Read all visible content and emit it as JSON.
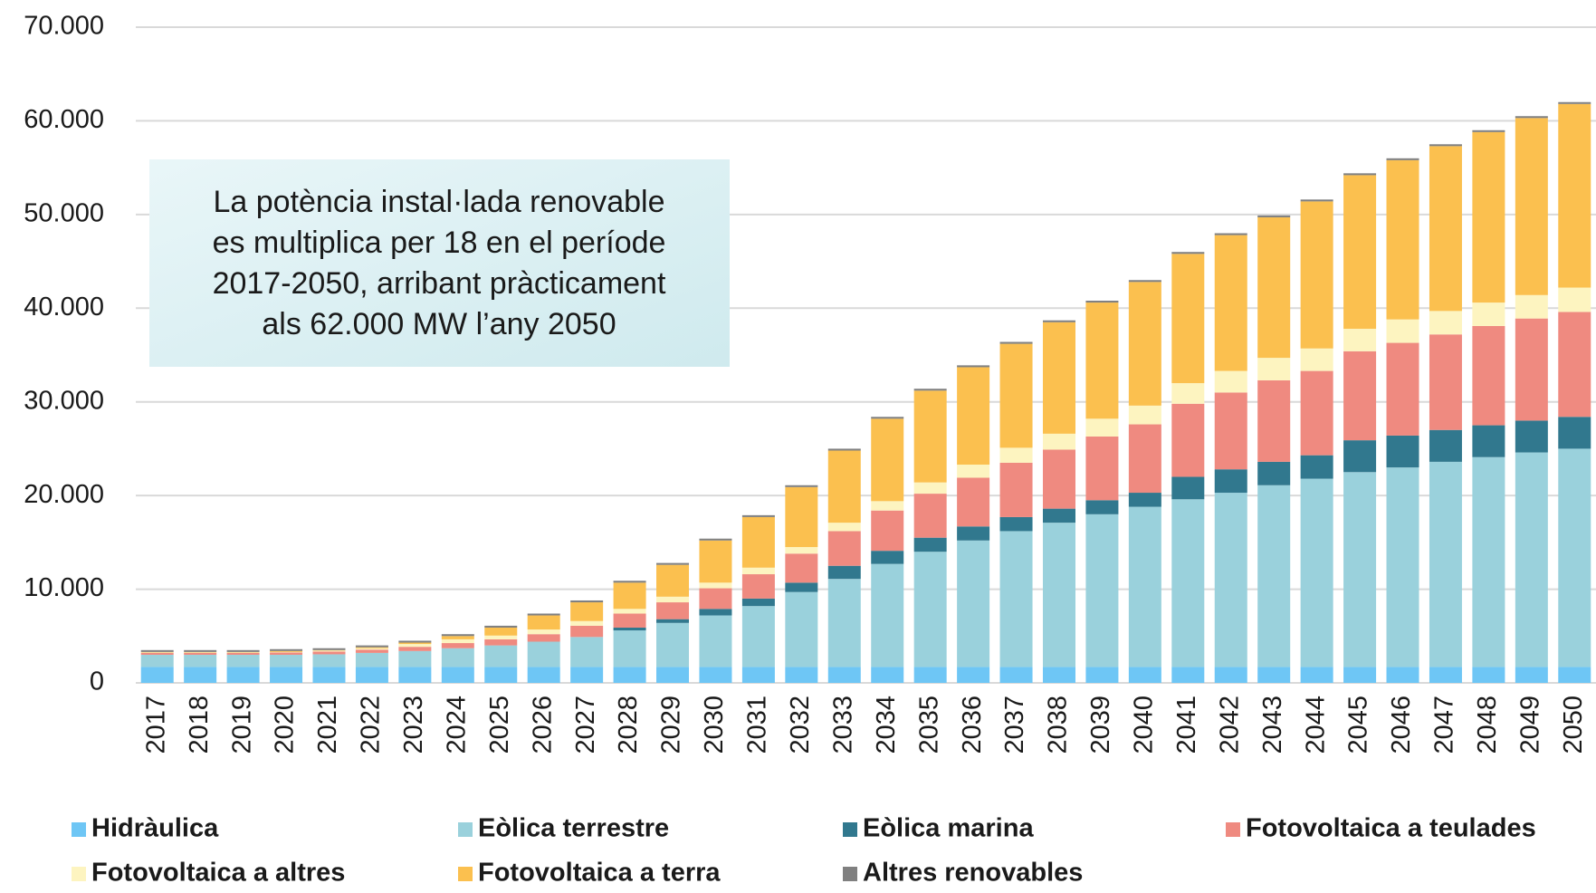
{
  "chart_data": {
    "type": "stacked_bar",
    "annotation": [
      "La potència instal·lada renovable",
      "es multiplica per 18 en el període",
      "2017-2050, arribant pràcticament",
      "als 62.000 MW l’any 2050"
    ],
    "categories": [
      "2017",
      "2018",
      "2019",
      "2020",
      "2021",
      "2022",
      "2023",
      "2024",
      "2025",
      "2026",
      "2027",
      "2028",
      "2029",
      "2030",
      "2031",
      "2032",
      "2033",
      "2034",
      "2035",
      "2036",
      "2037",
      "2038",
      "2039",
      "2040",
      "2041",
      "2042",
      "2043",
      "2044",
      "2045",
      "2046",
      "2047",
      "2048",
      "2049",
      "2050"
    ],
    "series": [
      {
        "name": "Hidràulica",
        "color": "#6ec6f5",
        "values": [
          1700,
          1700,
          1700,
          1700,
          1700,
          1700,
          1700,
          1700,
          1700,
          1700,
          1700,
          1700,
          1700,
          1700,
          1700,
          1700,
          1700,
          1700,
          1700,
          1700,
          1700,
          1700,
          1700,
          1700,
          1700,
          1700,
          1700,
          1700,
          1700,
          1700,
          1700,
          1700,
          1700,
          1700
        ]
      },
      {
        "name": "Eòlica terrestre",
        "color": "#9ad1dc",
        "values": [
          1300,
          1300,
          1300,
          1300,
          1350,
          1500,
          1700,
          2000,
          2300,
          2700,
          3200,
          3900,
          4700,
          5500,
          6500,
          8000,
          9400,
          11000,
          12300,
          13500,
          14500,
          15400,
          16300,
          17100,
          17900,
          18600,
          19400,
          20100,
          20800,
          21300,
          21900,
          22400,
          22900,
          23300
        ]
      },
      {
        "name": "Eòlica marina",
        "color": "#31788e",
        "values": [
          0,
          0,
          0,
          0,
          0,
          0,
          0,
          0,
          0,
          0,
          0,
          300,
          400,
          700,
          800,
          1000,
          1400,
          1400,
          1500,
          1500,
          1500,
          1500,
          1500,
          1500,
          2400,
          2500,
          2500,
          2500,
          3400,
          3400,
          3400,
          3400,
          3400,
          3400
        ]
      },
      {
        "name": "Fotovoltaica a teulades",
        "color": "#ef8a80",
        "values": [
          200,
          200,
          200,
          250,
          300,
          350,
          450,
          550,
          650,
          800,
          1200,
          1500,
          1800,
          2200,
          2600,
          3100,
          3700,
          4300,
          4700,
          5200,
          5800,
          6300,
          6800,
          7300,
          7800,
          8200,
          8700,
          9000,
          9500,
          9900,
          10200,
          10600,
          10900,
          11200
        ]
      },
      {
        "name": "Fotovoltaica a altres",
        "color": "#fdf4c0",
        "values": [
          50,
          50,
          50,
          50,
          100,
          150,
          300,
          400,
          400,
          500,
          500,
          500,
          600,
          600,
          700,
          700,
          900,
          1000,
          1200,
          1400,
          1600,
          1700,
          1900,
          2000,
          2200,
          2300,
          2400,
          2400,
          2400,
          2500,
          2500,
          2500,
          2500,
          2600
        ]
      },
      {
        "name": "Fotovoltaica a terra",
        "color": "#fbc04f",
        "values": [
          50,
          50,
          50,
          100,
          50,
          100,
          150,
          350,
          850,
          1500,
          2000,
          2800,
          3400,
          4500,
          5400,
          6400,
          7700,
          8800,
          9800,
          10400,
          11100,
          11900,
          12400,
          13200,
          13800,
          14500,
          15000,
          15700,
          16400,
          17000,
          17600,
          18200,
          18900,
          19600
        ]
      },
      {
        "name": "Altres renovables",
        "color": "#808080",
        "values": [
          200,
          200,
          200,
          200,
          200,
          200,
          200,
          200,
          200,
          200,
          200,
          200,
          200,
          200,
          200,
          200,
          200,
          200,
          200,
          200,
          200,
          200,
          200,
          200,
          200,
          200,
          200,
          200,
          200,
          200,
          200,
          200,
          200,
          200
        ]
      }
    ],
    "ylim": [
      0,
      70000
    ],
    "yticks": [
      0,
      {
        "value": 10000,
        "label": "10.000"
      },
      {
        "value": 20000,
        "label": "20.000"
      },
      {
        "value": 30000,
        "label": "30.000"
      },
      {
        "value": 40000,
        "label": "40.000"
      },
      {
        "value": 50000,
        "label": "50.000"
      },
      {
        "value": 60000,
        "label": "60.000"
      },
      {
        "value": 70000,
        "label": "70.000"
      }
    ],
    "grid": true
  }
}
